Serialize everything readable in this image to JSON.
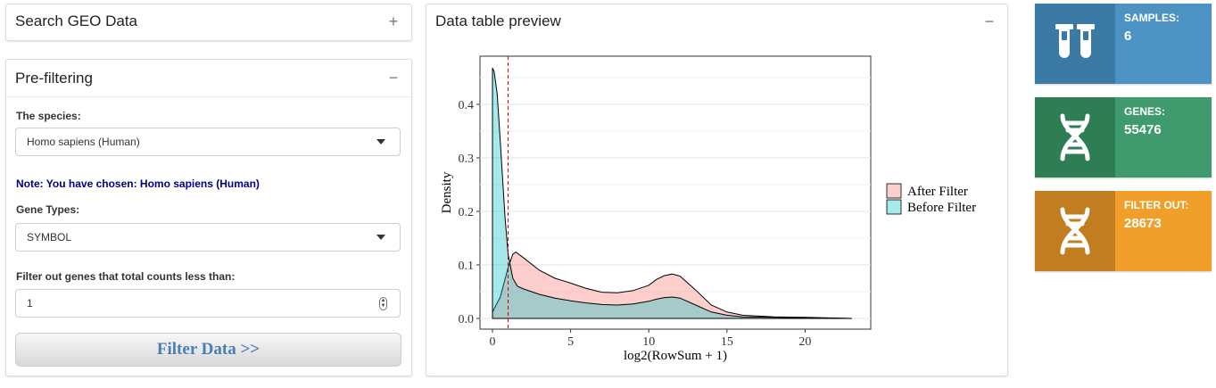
{
  "search_box": {
    "title": "Search GEO Data",
    "tool": "+"
  },
  "prefilter": {
    "title": "Pre-filtering",
    "tool": "−",
    "species_label": "The species:",
    "species_value": "Homo sapiens (Human)",
    "note": "Note: You have chosen: Homo sapiens (Human)",
    "gene_types_label": "Gene Types:",
    "gene_types_value": "SYMBOL",
    "filter_label": "Filter out genes that total counts less than:",
    "filter_value": "1",
    "button": "Filter Data >>"
  },
  "preview": {
    "title": "Data table preview",
    "tool": "−",
    "chart_data": {
      "type": "area",
      "xlabel": "log2(RowSum + 1)",
      "ylabel": "Density",
      "xlim": [
        -0.8,
        24.2
      ],
      "ylim": [
        -0.02,
        0.49
      ],
      "x_ticks": [
        0,
        5,
        10,
        15,
        20
      ],
      "x_tick_labels": [
        "0",
        "5",
        "10",
        "15",
        "20"
      ],
      "y_ticks": [
        0.0,
        0.1,
        0.2,
        0.3,
        0.4
      ],
      "y_tick_labels": [
        "0.0",
        "0.1",
        "0.2",
        "0.3",
        "0.4"
      ],
      "grid": true,
      "legend_position": "right",
      "threshold_line_x": 1,
      "series": [
        {
          "name": "After Filter",
          "color": "#f8766d",
          "x": [
            0,
            0.5,
            1,
            1.3,
            1.5,
            2,
            3,
            4,
            5,
            6,
            7,
            8,
            9,
            10,
            10.5,
            11,
            11.5,
            12,
            13,
            14,
            15,
            16,
            18,
            20,
            23
          ],
          "y": [
            0.012,
            0.04,
            0.095,
            0.12,
            0.124,
            0.113,
            0.09,
            0.075,
            0.066,
            0.056,
            0.049,
            0.048,
            0.052,
            0.062,
            0.073,
            0.08,
            0.083,
            0.079,
            0.053,
            0.025,
            0.012,
            0.006,
            0.003,
            0.002,
            0.0
          ]
        },
        {
          "name": "Before Filter",
          "color": "#00bfc4",
          "x": [
            0,
            0.1,
            0.3,
            0.5,
            0.8,
            1,
            1.3,
            1.6,
            2,
            3,
            4,
            5,
            6,
            7,
            8,
            9,
            10,
            10.5,
            11,
            11.5,
            12,
            13,
            14,
            15,
            16,
            18,
            20,
            23
          ],
          "y": [
            0.468,
            0.462,
            0.42,
            0.33,
            0.19,
            0.12,
            0.075,
            0.06,
            0.055,
            0.045,
            0.038,
            0.033,
            0.029,
            0.026,
            0.025,
            0.027,
            0.032,
            0.036,
            0.039,
            0.04,
            0.038,
            0.025,
            0.012,
            0.006,
            0.003,
            0.002,
            0.001,
            0.0
          ]
        }
      ]
    }
  },
  "stats": [
    {
      "label": "SAMPLES:",
      "value": "6",
      "icon": "test-tubes-icon",
      "dark": "#3a7aa4",
      "light": "#4c93c4"
    },
    {
      "label": "GENES:",
      "value": "55476",
      "icon": "dna-icon",
      "dark": "#2e7d55",
      "light": "#3f9b6d"
    },
    {
      "label": "FILTER OUT:",
      "value": "28673",
      "icon": "dna-icon",
      "dark": "#c27d20",
      "light": "#f0a02a"
    }
  ]
}
